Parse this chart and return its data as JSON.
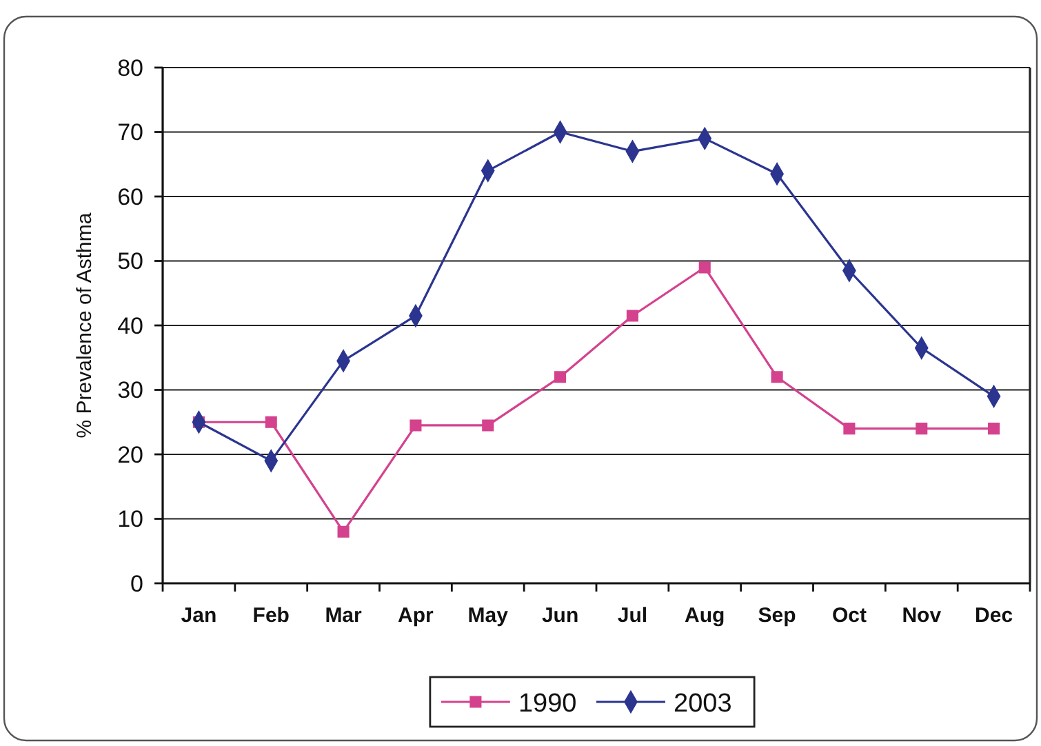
{
  "chart_data": {
    "type": "line",
    "ylabel": "% Prevalence of Asthma",
    "categories": [
      "Jan",
      "Feb",
      "Mar",
      "Apr",
      "May",
      "Jun",
      "Jul",
      "Aug",
      "Sep",
      "Oct",
      "Nov",
      "Dec"
    ],
    "series": [
      {
        "name": "1990",
        "color": "#d4428e",
        "marker": "square",
        "values": [
          25,
          25,
          8,
          24.5,
          24.5,
          32,
          41.5,
          49,
          32,
          24,
          24,
          24
        ]
      },
      {
        "name": "2003",
        "color": "#2b3590",
        "marker": "diamond",
        "values": [
          25,
          19,
          34.5,
          41.5,
          64,
          70,
          67,
          69,
          63.5,
          48.5,
          36.5,
          29
        ]
      }
    ],
    "ylim": [
      0,
      80
    ],
    "yticks": [
      0,
      10,
      20,
      30,
      40,
      50,
      60,
      70,
      80
    ],
    "grid": "y",
    "legend": "bottom"
  }
}
